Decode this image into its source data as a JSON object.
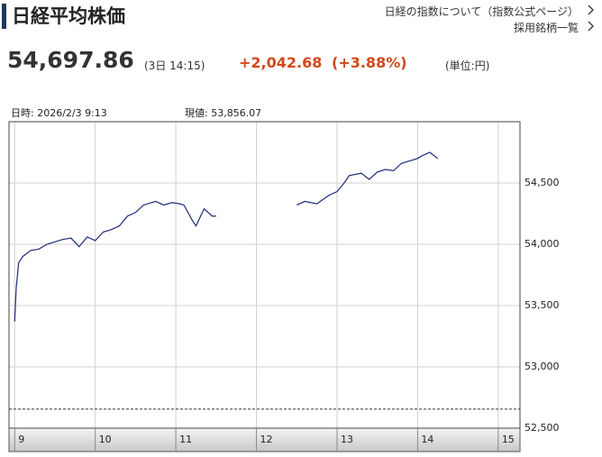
{
  "header": {
    "title": "日経平均株価",
    "links": [
      "日経の指数について（指数公式ページ）",
      "採用銘柄一覧"
    ]
  },
  "quote": {
    "price": "54,697.86",
    "time": "(3日 14:15)",
    "change": "+2,042.68",
    "percent": "(+3.88%)",
    "unit": "(単位:円)"
  },
  "chart_data": {
    "type": "line",
    "info": [
      "日時: 2026/2/3  9:13",
      "現値: 53,856.07"
    ],
    "x": [
      9.0,
      9.02,
      9.05,
      9.1,
      9.2,
      9.3,
      9.4,
      9.5,
      9.6,
      9.7,
      9.8,
      9.9,
      10.0,
      10.1,
      10.2,
      10.3,
      10.4,
      10.5,
      10.6,
      10.75,
      10.85,
      10.95,
      11.05,
      11.1,
      11.2,
      11.25,
      11.35,
      11.45,
      11.5,
      12.0,
      12.5,
      12.6,
      12.75,
      12.9,
      13.0,
      13.1,
      13.15,
      13.3,
      13.4,
      13.5,
      13.6,
      13.7,
      13.8,
      13.9,
      14.0,
      14.05,
      14.15,
      14.25
    ],
    "series": [
      {
        "name": "日経平均株価",
        "color": "#1f2a78",
        "values": [
          53370,
          53650,
          53850,
          53900,
          53950,
          53960,
          54000,
          54020,
          54040,
          54050,
          53980,
          54060,
          54030,
          54100,
          54120,
          54150,
          54230,
          54260,
          54320,
          54350,
          54320,
          54340,
          54330,
          54320,
          54200,
          54150,
          54290,
          54230,
          54230,
          null,
          54320,
          54350,
          54330,
          54400,
          54430,
          54510,
          54560,
          54580,
          54530,
          54590,
          54610,
          54600,
          54660,
          54680,
          54700,
          54720,
          54750,
          54700
        ]
      }
    ],
    "xlim": [
      8.93,
      15.27
    ],
    "xticks": [
      9,
      10,
      11,
      12,
      13,
      14,
      15
    ],
    "ylim": [
      52500,
      55000
    ],
    "yticks": [
      {
        "value": 52500,
        "label": "52,500"
      },
      {
        "value": 53000,
        "label": "53,000"
      },
      {
        "value": 53500,
        "label": "53,500"
      },
      {
        "value": 54000,
        "label": "54,000"
      },
      {
        "value": 54500,
        "label": "54,500"
      }
    ],
    "ref_line": 52655,
    "grid": true
  }
}
